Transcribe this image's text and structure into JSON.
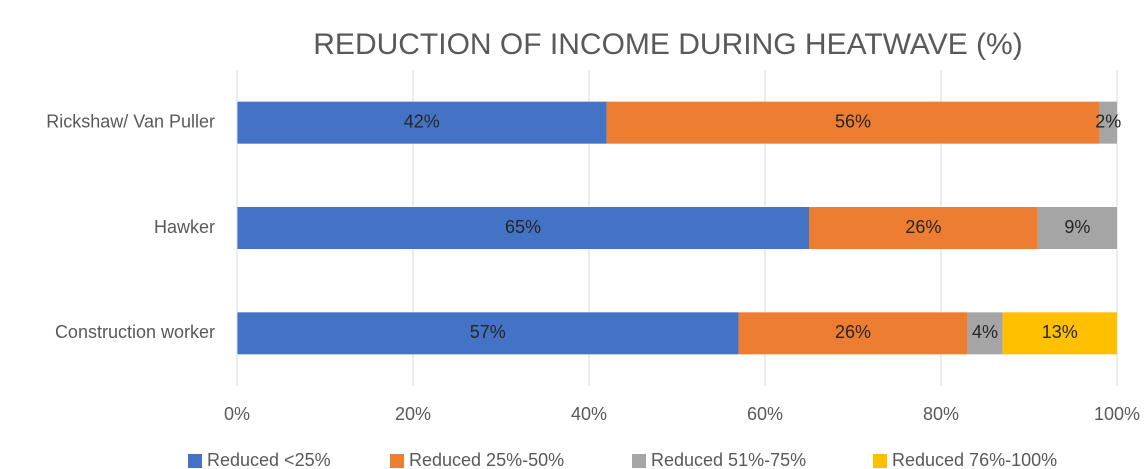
{
  "chart_data": {
    "type": "bar",
    "orientation": "horizontal",
    "stacked": true,
    "title": "REDUCTION OF INCOME DURING HEATWAVE (%)",
    "categories": [
      "Rickshaw/ Van Puller",
      "Hawker",
      "Construction worker"
    ],
    "series": [
      {
        "name": "Reduced <25%",
        "color": "#4472c4",
        "values": [
          42,
          65,
          57
        ],
        "value_labels": [
          "42%",
          "65%",
          "57%"
        ]
      },
      {
        "name": "Reduced 25%-50%",
        "color": "#ed7d31",
        "values": [
          56,
          26,
          26
        ],
        "value_labels": [
          "56%",
          "26%",
          "26%"
        ]
      },
      {
        "name": "Reduced 51%-75%",
        "color": "#a5a5a5",
        "values": [
          2,
          9,
          4
        ],
        "value_labels": [
          "2%",
          "9%",
          "4%"
        ]
      },
      {
        "name": "Reduced 76%-100%",
        "color": "#ffc000",
        "values": [
          null,
          null,
          13
        ],
        "value_labels": [
          null,
          null,
          "13%"
        ]
      }
    ],
    "xlim": [
      0,
      100
    ],
    "xticks": [
      {
        "value": 0,
        "label": "0%"
      },
      {
        "value": 20,
        "label": "20%"
      },
      {
        "value": 40,
        "label": "40%"
      },
      {
        "value": 60,
        "label": "60%"
      },
      {
        "value": 80,
        "label": "80%"
      },
      {
        "value": 100,
        "label": "100%"
      }
    ],
    "grid": true,
    "legend": "bottom"
  }
}
